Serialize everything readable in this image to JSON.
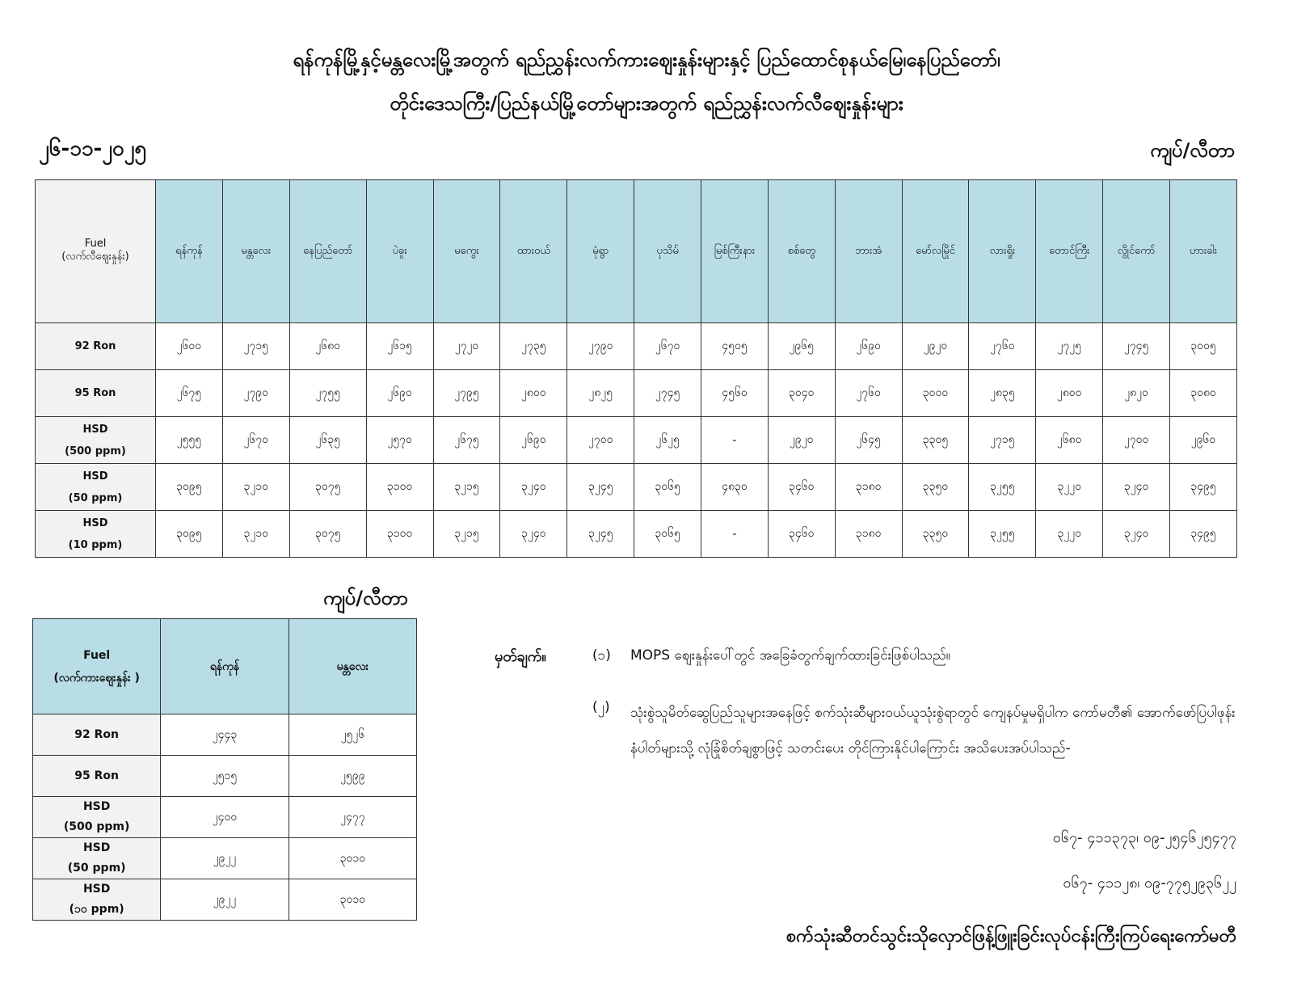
{
  "title": {
    "line1": "ရန်ကုန်မြို့နှင့်မန္တလေးမြို့အတွက် ရည်ညွှန်းလက်ကားဈေးနှုန်းများနှင့် ပြည်ထောင်စုနယ်မြေ၊နေပြည်တော်၊",
    "line2": "တိုင်းဒေသကြီး/ပြည်နယ်မြို့တော်များအတွက် ရည်ညွှန်းလက်လီဈေးနှုန်းများ"
  },
  "date": "၂၆-၁၁-၂၀၂၅",
  "unit": "ကျပ်/လီတာ",
  "retail": {
    "header_fuel": "Fuel",
    "header_sub": "(လက်လီဈေးနှုန်း)",
    "cities": [
      "ရန်ကုန်",
      "မန္တလေး",
      "နေပြည်တော်",
      "ပဲခူး",
      "မကွေး",
      "ထားဝယ်",
      "မုံရွာ",
      "ပုသိမ်",
      "မြစ်ကြီးနား",
      "စစ်တွေ",
      "ဘားအံ",
      "မော်လမြိုင်",
      "လားရှိုး",
      "တောင်ကြီး",
      "လွိုင်ကော်",
      "ဟားခါး"
    ],
    "rows": [
      {
        "fuel": "92 Ron",
        "sub": "",
        "values": [
          "၂၆၀၀",
          "၂၇၁၅",
          "၂၆၈၀",
          "၂၆၁၅",
          "၂၇၂၀",
          "၂၇၃၅",
          "၂၇၉၀",
          "၂၆၇၀",
          "၄၅၀၅",
          "၂၉၆၅",
          "၂၆၉၀",
          "၂၉၂၀",
          "၂၇၆၀",
          "၂၇၂၅",
          "၂၇၄၅",
          "၃၀၀၅"
        ]
      },
      {
        "fuel": "95 Ron",
        "sub": "",
        "values": [
          "၂၆၇၅",
          "၂၇၉၀",
          "၂၇၅၅",
          "၂၆၉၀",
          "၂၇၉၅",
          "၂၈၀၀",
          "၂၈၂၅",
          "၂၇၄၅",
          "၄၅၆၀",
          "၃၀၄၀",
          "၂၇၆၀",
          "၃၀၀၀",
          "၂၈၃၅",
          "၂၈၀၀",
          "၂၈၂၀",
          "၃၀၈၀"
        ]
      },
      {
        "fuel": "HSD",
        "sub": "(500 ppm)",
        "values": [
          "၂၅၅၅",
          "၂၆၇၀",
          "၂၆၃၅",
          "၂၅၇၀",
          "၂၆၇၅",
          "၂၆၉၀",
          "၂၇၀၀",
          "၂၆၂၅",
          "-",
          "၂၉၂၀",
          "၂၆၄၅",
          "၃၃၀၅",
          "၂၇၁၅",
          "၂၆၈၀",
          "၂၇၀၀",
          "၂၉၆၀"
        ]
      },
      {
        "fuel": "HSD",
        "sub": "(50 ppm)",
        "values": [
          "၃၀၉၅",
          "၃၂၁၀",
          "၃၀၇၅",
          "၃၁၀၀",
          "၃၂၁၅",
          "၃၂၄၀",
          "၃၂၄၅",
          "၃၀၆၅",
          "၄၈၃၀",
          "၃၄၆၀",
          "၃၁၈၀",
          "၃၃၅၀",
          "၃၂၅၅",
          "၃၂၂၀",
          "၃၂၄၀",
          "၃၄၉၅"
        ]
      },
      {
        "fuel": "HSD",
        "sub": "(10 ppm)",
        "values": [
          "၃၀၉၅",
          "၃၂၁၀",
          "၃၀၇၅",
          "၃၁၀၀",
          "၃၂၁၅",
          "၃၂၄၀",
          "၃၂၄၅",
          "၃၀၆၅",
          "-",
          "၃၄၆၀",
          "၃၁၈၀",
          "၃၃၅၀",
          "၃၂၅၅",
          "၃၂၂၀",
          "၃၂၄၀",
          "၃၄၉၅"
        ]
      }
    ]
  },
  "wholesale": {
    "header_fuel": "Fuel",
    "header_sub": "(လက်ကားဈေးနှုန်း )",
    "cities": [
      "ရန်ကုန်",
      "မန္တလေး"
    ],
    "rows": [
      {
        "fuel": "92 Ron",
        "sub": "",
        "values": [
          "၂၄၄၃",
          "၂၅၂၆"
        ]
      },
      {
        "fuel": "95 Ron",
        "sub": "",
        "values": [
          "၂၅၁၅",
          "၂၅၉၉"
        ]
      },
      {
        "fuel": "HSD",
        "sub": "(500 ppm)",
        "values": [
          "၂၄၀၀",
          "၂၄၇၇"
        ]
      },
      {
        "fuel": "HSD",
        "sub": "(50 ppm)",
        "values": [
          "၂၉၂၂",
          "၃၀၁၀"
        ]
      },
      {
        "fuel": "HSD",
        "sub": "(၁၀ ppm)",
        "values": [
          "၂၉၂၂",
          "၃၀၁၀"
        ]
      }
    ]
  },
  "notes": {
    "label": "မှတ်ချက်။",
    "items": [
      {
        "num": "(၁)",
        "text": "MOPS ဈေးနှုန်းပေါ်တွင် အခြေခံတွက်ချက်ထားခြင်းဖြစ်ပါသည်။"
      },
      {
        "num": "(၂)",
        "text": "သုံးစွဲသူမိတ်ဆွေပြည်သူများအနေဖြင့် စက်သုံးဆီများဝယ်ယူသုံးစွဲရာတွင် ကျေနပ်မှုမရှိပါက ကော်မတီ၏ အောက်ဖော်ပြပါဖုန်းနံပါတ်များသို့ လုံခြုံစိတ်ချစွာဖြင့် သတင်းပေး တိုင်ကြားနိုင်ပါကြောင်း အသိပေးအပ်ပါသည်-"
      }
    ],
    "phones": [
      "၀၆၇- ၄၁၁၃၇၃၊ ၀၉-၂၅၄၆၂၅၄၇၇",
      "၀၆၇- ၄၁၁၂၈၊ ၀၉-၇၇၅၂၉၃၆၂၂"
    ]
  },
  "footer": "စက်သုံးဆီတင်သွင်းသိုလှောင်ဖြန့်ဖြူးခြင်းလုပ်ငန်းကြီးကြပ်ရေးကော်မတီ",
  "colors": {
    "header_bg": "#b8dde6",
    "label_bg": "#f2f2f2"
  }
}
